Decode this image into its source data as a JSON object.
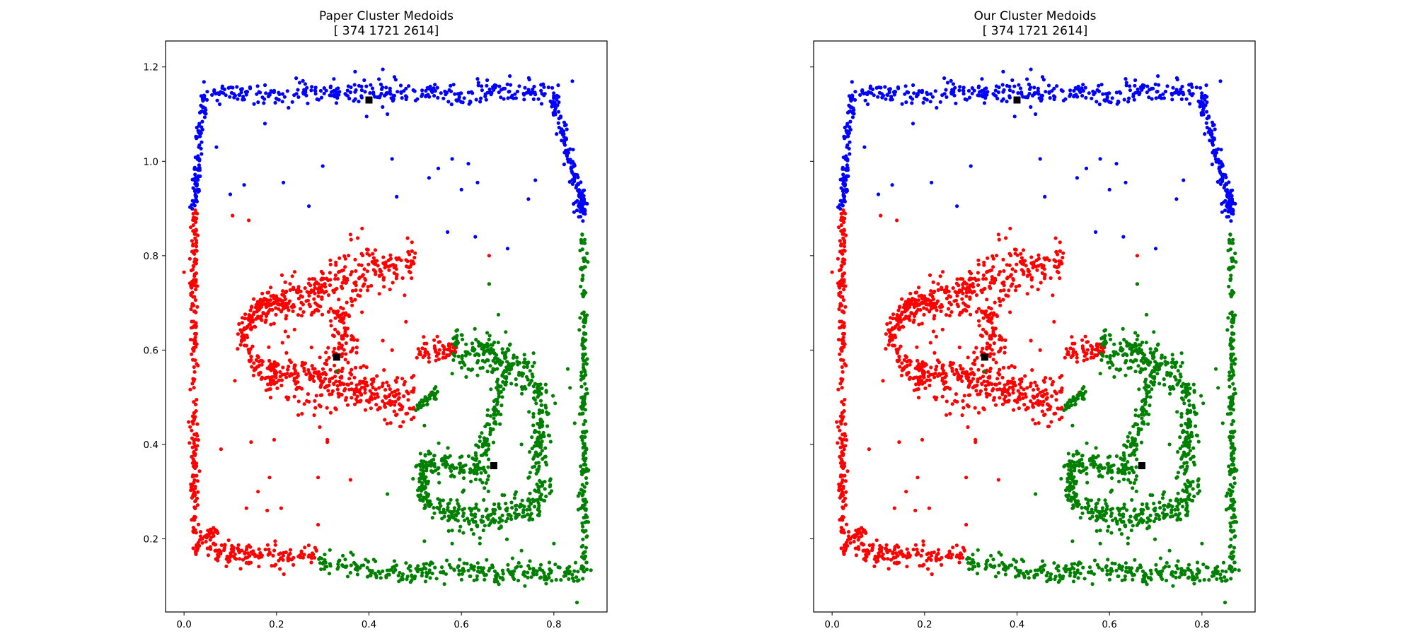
{
  "colors": {
    "cluster_a": "#0000ff",
    "cluster_b": "#ff0000",
    "cluster_c": "#008000",
    "medoid": "#000000"
  },
  "chart_data": [
    {
      "type": "scatter",
      "title": "Paper Cluster Medoids",
      "subtitle": "[ 374 1721 2614]",
      "xlim": [
        -0.04,
        0.915
      ],
      "ylim": [
        0.045,
        1.255
      ],
      "x_ticks": [
        "0.0",
        "0.2",
        "0.4",
        "0.6",
        "0.8"
      ],
      "y_ticks": [
        "0.2",
        "0.4",
        "0.6",
        "0.8",
        "1.0",
        "1.2"
      ],
      "show_y_tick_labels": true,
      "grid": false,
      "medoids": [
        [
          0.4,
          1.13
        ],
        [
          0.33,
          0.585
        ],
        [
          0.67,
          0.355
        ]
      ]
    },
    {
      "type": "scatter",
      "title": "Our Cluster Medoids",
      "subtitle": "[ 374 1721 2614]",
      "xlim": [
        -0.04,
        0.915
      ],
      "ylim": [
        0.045,
        1.255
      ],
      "x_ticks": [
        "0.0",
        "0.2",
        "0.4",
        "0.6",
        "0.8"
      ],
      "y_ticks": [
        "0.2",
        "0.4",
        "0.6",
        "0.8",
        "1.0",
        "1.2"
      ],
      "show_y_tick_labels": false,
      "grid": false,
      "medoids": [
        [
          0.4,
          1.13
        ],
        [
          0.33,
          0.585
        ],
        [
          0.67,
          0.355
        ]
      ]
    }
  ]
}
